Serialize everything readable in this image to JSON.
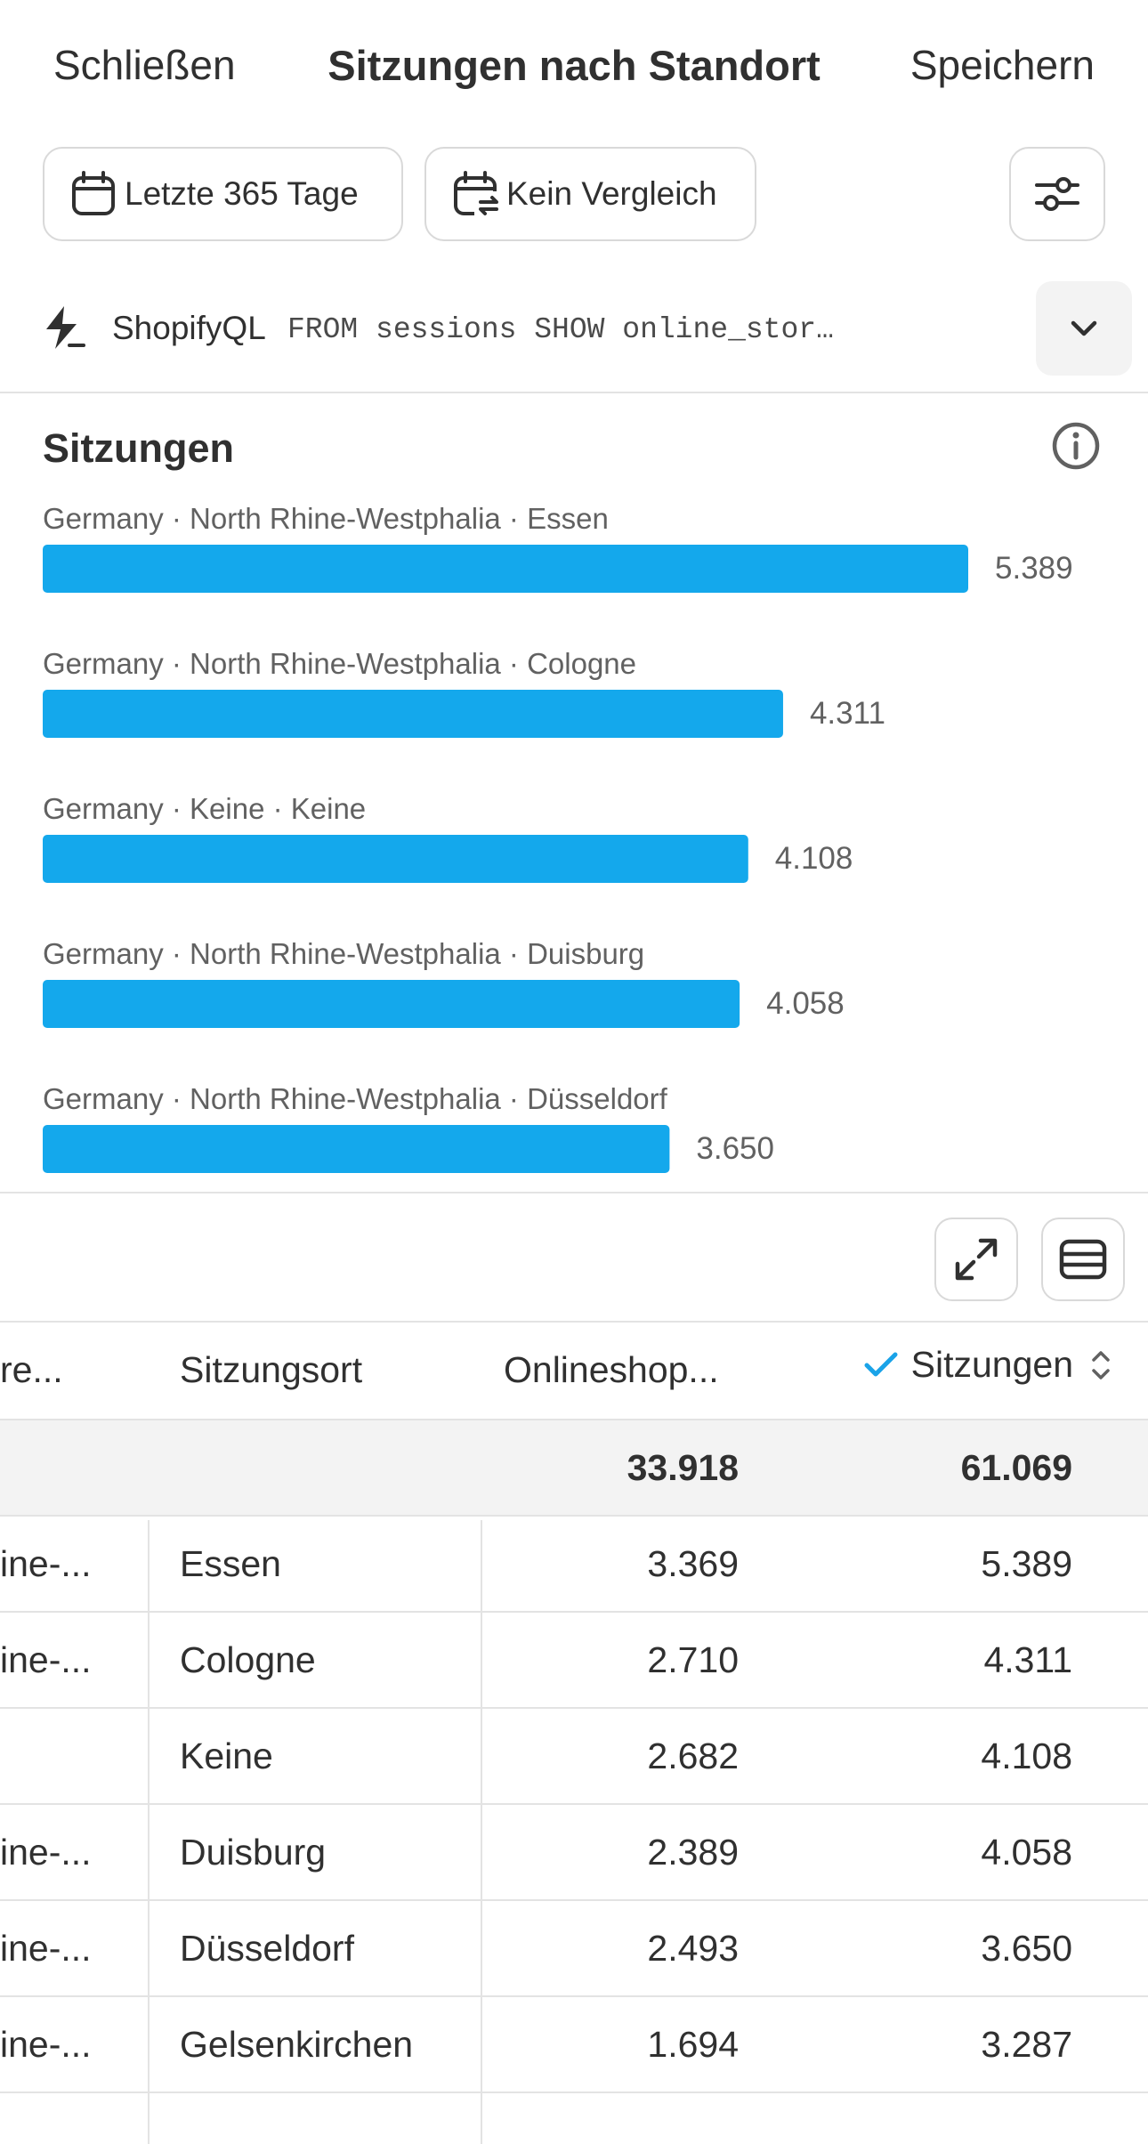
{
  "header": {
    "close_label": "Schließen",
    "title": "Sitzungen nach Standort",
    "save_label": "Speichern"
  },
  "filters": {
    "date_label": "Letzte 365 Tage",
    "compare_label": "Kein Vergleich"
  },
  "query": {
    "label": "ShopifyQL",
    "code": "FROM sessions SHOW online_stor…"
  },
  "colors": {
    "bar": "#14a8ec",
    "checkmark": "#1aa3e8"
  },
  "chart_data": {
    "type": "bar",
    "title": "Sitzungen",
    "orientation": "horizontal",
    "categories": [
      "Germany · North Rhine-Westphalia · Essen",
      "Germany · North Rhine-Westphalia · Cologne",
      "Germany · Keine · Keine",
      "Germany · North Rhine-Westphalia · Duisburg",
      "Germany · North Rhine-Westphalia · Düsseldorf"
    ],
    "values": [
      5389,
      4311,
      4108,
      4058,
      3650
    ],
    "value_labels": [
      "5.389",
      "4.311",
      "4.108",
      "4.058",
      "3.650"
    ]
  },
  "table": {
    "columns": [
      "re...",
      "Sitzungsort",
      "Onlineshop...",
      "Sitzungen"
    ],
    "totals": [
      "",
      "",
      "33.918",
      "61.069"
    ],
    "rows": [
      [
        "ine-...",
        "Essen",
        "3.369",
        "5.389"
      ],
      [
        "ine-...",
        "Cologne",
        "2.710",
        "4.311"
      ],
      [
        "",
        "Keine",
        "2.682",
        "4.108"
      ],
      [
        "ine-...",
        "Duisburg",
        "2.389",
        "4.058"
      ],
      [
        "ine-...",
        "Düsseldorf",
        "2.493",
        "3.650"
      ],
      [
        "ine-...",
        "Gelsenkirchen",
        "1.694",
        "3.287"
      ]
    ]
  },
  "icons": {
    "date": "calendar-icon",
    "compare": "calendar-compare-icon",
    "settings": "sliders-icon",
    "query": "bolt-icon",
    "expand_query": "chevron-down-icon",
    "info": "info-icon",
    "fullscreen": "expand-icon",
    "columns": "table-icon",
    "sort_selected": "checkmark-icon",
    "sort": "sort-icon"
  }
}
